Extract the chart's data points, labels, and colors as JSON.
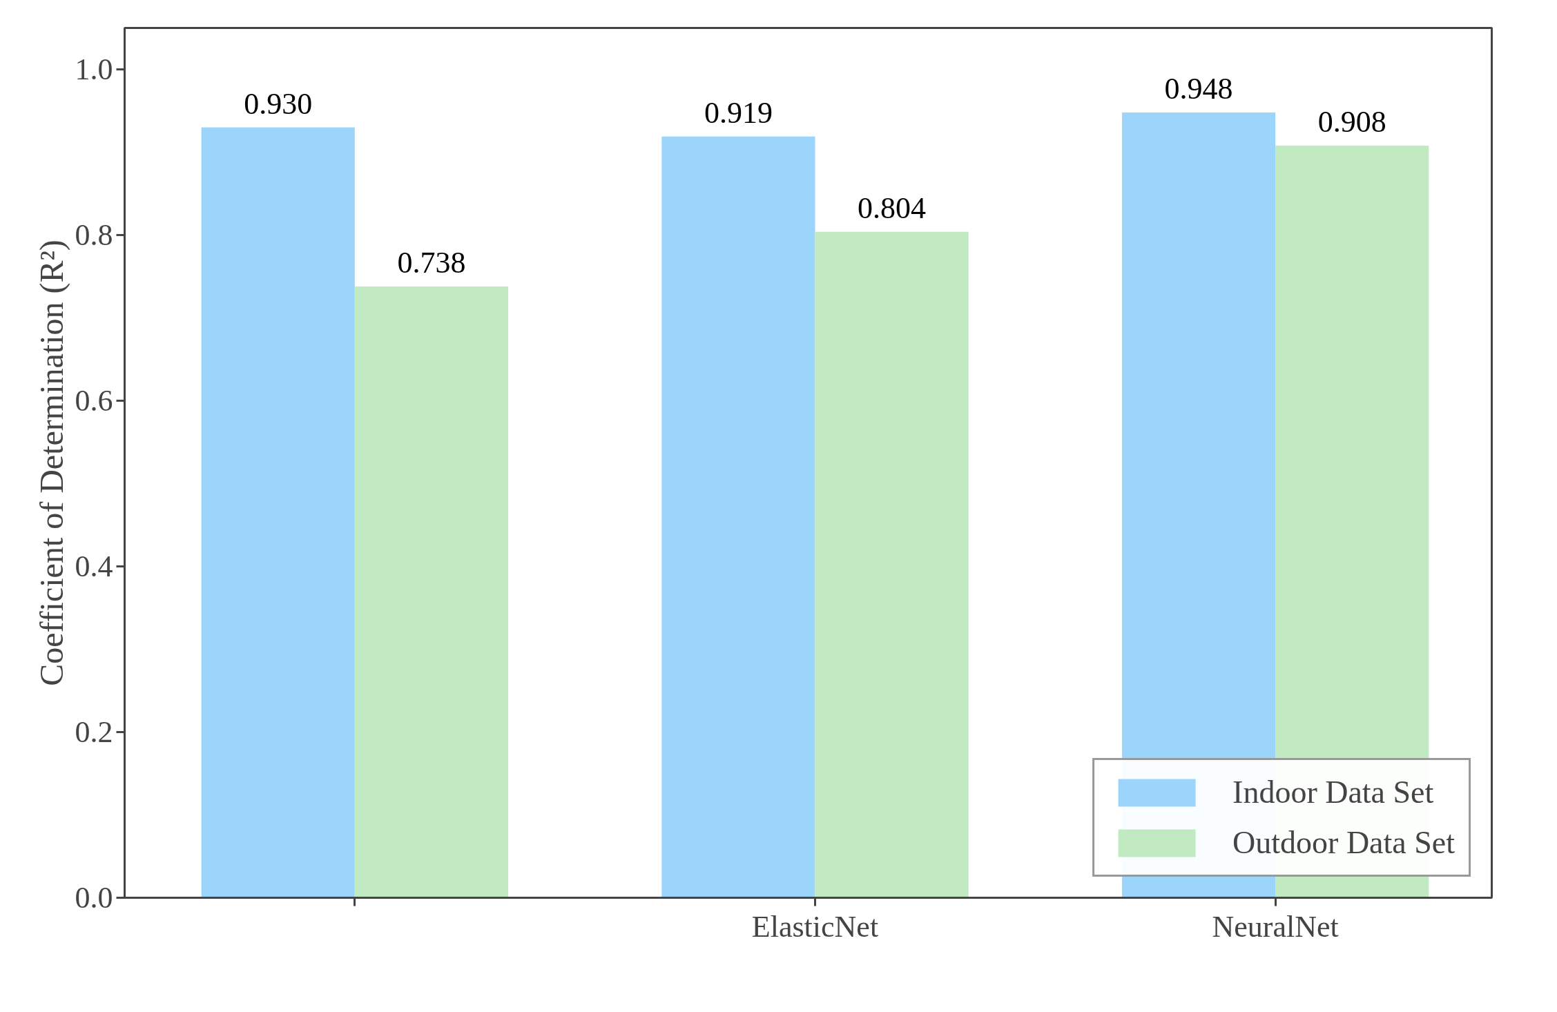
{
  "chart_data": {
    "type": "bar",
    "ylabel": "Coefficient of Determination (R²)",
    "categories": [
      null,
      "ElasticNet",
      "NeuralNet"
    ],
    "series": [
      {
        "name": "Indoor Data Set",
        "color": "#9bd5fc",
        "values": [
          0.93,
          0.919,
          0.948
        ],
        "value_labels": [
          "0.930",
          "0.919",
          "0.948"
        ]
      },
      {
        "name": "Outdoor Data Set",
        "color": "#c1eac3",
        "values": [
          0.738,
          0.804,
          0.908
        ],
        "value_labels": [
          "0.738",
          "0.804",
          "0.908"
        ]
      }
    ],
    "ylim": [
      0,
      1.05
    ],
    "yticks": [
      {
        "value": 0,
        "label": "0.0"
      },
      {
        "value": 0.2,
        "label": "0.2"
      },
      {
        "value": 0.4,
        "label": "0.4"
      },
      {
        "value": 0.6,
        "label": "0.6"
      },
      {
        "value": 0.8,
        "label": "0.8"
      },
      {
        "value": 1.0,
        "label": "1.0"
      }
    ],
    "legend": "bottom right",
    "grid": false
  }
}
